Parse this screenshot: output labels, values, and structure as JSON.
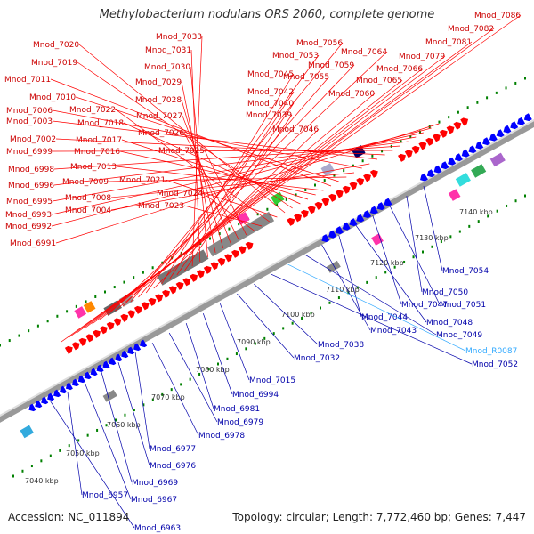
{
  "title": "Methylobacterium nodulans ORS 2060, complete genome",
  "footer": {
    "accession": "Accession: NC_011894",
    "summary": "Topology: circular; Length: 7,772,460 bp; Genes: 7,447"
  },
  "colors": {
    "forward_gene": "#ff0000",
    "reverse_gene": "#0000ff",
    "backbone": "#888888",
    "tick": "#008000",
    "rna_label": "#33aaff"
  },
  "ticks": [
    "7040 kbp",
    "7050 kbp",
    "7060 kbp",
    "7070 kbp",
    "7080 kbp",
    "7090 kbp",
    "7100 kbp",
    "7110 kbp",
    "7120 kbp",
    "7130 kbp",
    "7140 kbp"
  ],
  "top_labels": [
    "Mnod_7086",
    "Mnod_7082",
    "Mnod_7081",
    "Mnod_7079",
    "Mnod_7066",
    "Mnod_7065",
    "Mnod_7064",
    "Mnod_7060",
    "Mnod_7059",
    "Mnod_7056",
    "Mnod_7055",
    "Mnod_7053",
    "Mnod_7046",
    "Mnod_7045",
    "Mnod_7042",
    "Mnod_7040",
    "Mnod_7039",
    "Mnod_7033",
    "Mnod_7031",
    "Mnod_7030",
    "Mnod_7029",
    "Mnod_7028",
    "Mnod_7027",
    "Mnod_7026",
    "Mnod_7025",
    "Mnod_7024",
    "Mnod_7023",
    "Mnod_7022",
    "Mnod_7021",
    "Mnod_7020",
    "Mnod_7019",
    "Mnod_7018",
    "Mnod_7017",
    "Mnod_7016",
    "Mnod_7013",
    "Mnod_7011",
    "Mnod_7010",
    "Mnod_7009",
    "Mnod_7008",
    "Mnod_7006",
    "Mnod_7004",
    "Mnod_7003",
    "Mnod_7002",
    "Mnod_6999",
    "Mnod_6998",
    "Mnod_6996",
    "Mnod_6995",
    "Mnod_6993",
    "Mnod_6992",
    "Mnod_6991"
  ],
  "bottom_labels": [
    "Mnod_7054",
    "Mnod_7050",
    "Mnod_7051",
    "Mnod_7047",
    "Mnod_7048",
    "Mnod_7044",
    "Mnod_7043",
    "Mnod_7049",
    "Mnod_R0087",
    "Mnod_7052",
    "Mnod_7038",
    "Mnod_7032",
    "Mnod_7015",
    "Mnod_6994",
    "Mnod_6981",
    "Mnod_6979",
    "Mnod_6978",
    "Mnod_6977",
    "Mnod_6976",
    "Mnod_6969",
    "Mnod_6967",
    "Mnod_6957",
    "Mnod_6963"
  ]
}
